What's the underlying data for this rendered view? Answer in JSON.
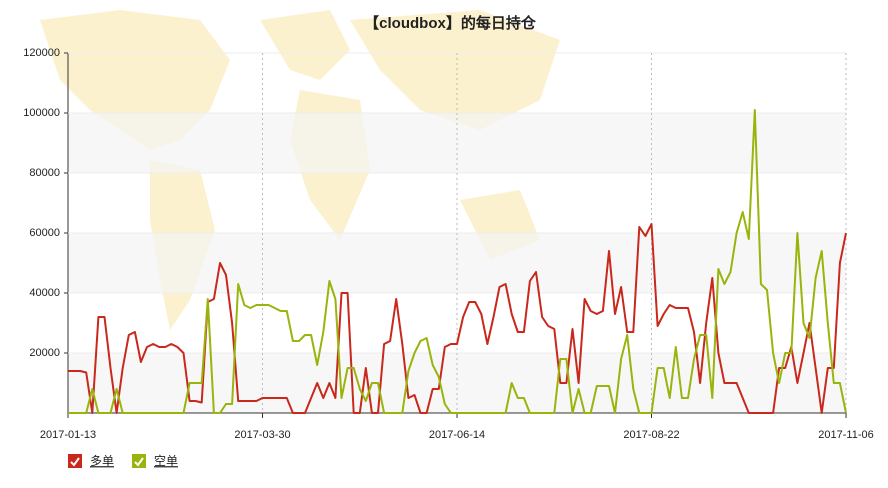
{
  "chart_data": {
    "type": "line",
    "title": "【cloudbox】的每日持仓",
    "categories": [
      "2017-01-13",
      null,
      null,
      null,
      null,
      null,
      null,
      null,
      null,
      null,
      null,
      null,
      null,
      null,
      null,
      null,
      null,
      null,
      null,
      null,
      null,
      null,
      null,
      null,
      null,
      null,
      null,
      null,
      null,
      null,
      null,
      null,
      "2017-03-30",
      null,
      null,
      null,
      null,
      null,
      null,
      null,
      null,
      null,
      null,
      null,
      null,
      null,
      null,
      null,
      null,
      null,
      null,
      null,
      null,
      null,
      null,
      null,
      null,
      null,
      null,
      null,
      null,
      null,
      null,
      null,
      "2017-06-14",
      null,
      null,
      null,
      null,
      null,
      null,
      null,
      null,
      null,
      null,
      null,
      null,
      null,
      null,
      null,
      null,
      null,
      null,
      null,
      null,
      null,
      null,
      null,
      null,
      null,
      null,
      null,
      null,
      null,
      null,
      null,
      "2017-08-22",
      null,
      null,
      null,
      null,
      null,
      null,
      null,
      null,
      null,
      null,
      null,
      null,
      null,
      null,
      null,
      null,
      null,
      null,
      null,
      null,
      null,
      null,
      null,
      null,
      null,
      null,
      null,
      null,
      null,
      null,
      null,
      "2017-11-06"
    ],
    "series": [
      {
        "name": "多单",
        "color": "#c9281c",
        "values": [
          14000,
          14000,
          14000,
          13500,
          0,
          32000,
          32000,
          15000,
          0,
          15000,
          26000,
          27000,
          17000,
          22000,
          23000,
          22000,
          22000,
          23000,
          22000,
          20000,
          4000,
          4000,
          3500,
          37000,
          38000,
          50000,
          46000,
          30000,
          4000,
          4000,
          4000,
          4000,
          5000,
          5000,
          5000,
          5000,
          5000,
          0,
          0,
          0,
          5000,
          10000,
          5000,
          10000,
          5000,
          40000,
          40000,
          0,
          0,
          15000,
          0,
          0,
          23000,
          24000,
          38000,
          23000,
          5000,
          6000,
          0,
          0,
          8000,
          8000,
          22000,
          23000,
          23000,
          32000,
          37000,
          37000,
          33000,
          23000,
          32000,
          42000,
          43000,
          33000,
          27000,
          27000,
          44000,
          47000,
          32000,
          29000,
          28000,
          10000,
          10000,
          28000,
          10000,
          38000,
          34000,
          33000,
          34000,
          54000,
          33000,
          42000,
          27000,
          27000,
          62000,
          59000,
          63000,
          29000,
          33000,
          36000,
          35000,
          35000,
          35000,
          27000,
          10000,
          30000,
          45000,
          20000,
          10000,
          10000,
          10000,
          5000,
          0,
          0,
          0,
          0,
          0,
          15000,
          15000,
          22000,
          10000,
          20000,
          30000,
          15000,
          0,
          15000,
          15000,
          50000,
          60000
        ]
      },
      {
        "name": "空单",
        "color": "#99b40c",
        "values": [
          0,
          0,
          0,
          0,
          8000,
          0,
          0,
          0,
          8000,
          0,
          0,
          0,
          0,
          0,
          0,
          0,
          0,
          0,
          0,
          0,
          10000,
          10000,
          10000,
          38000,
          0,
          0,
          3000,
          3000,
          43000,
          36000,
          35000,
          36000,
          36000,
          36000,
          35000,
          34000,
          34000,
          24000,
          24000,
          26000,
          26000,
          16000,
          27000,
          44000,
          38000,
          5000,
          15000,
          15000,
          8000,
          4000,
          10000,
          10000,
          0,
          0,
          0,
          0,
          14000,
          20000,
          24000,
          25000,
          16000,
          12000,
          3000,
          0,
          0,
          0,
          0,
          0,
          0,
          0,
          0,
          0,
          0,
          10000,
          5000,
          5000,
          0,
          0,
          0,
          0,
          0,
          18000,
          18000,
          0,
          8000,
          0,
          0,
          9000,
          9000,
          9000,
          0,
          18000,
          26000,
          8000,
          0,
          0,
          0,
          15000,
          15000,
          5000,
          22000,
          5000,
          5000,
          18000,
          26000,
          26000,
          5000,
          48000,
          43000,
          47000,
          60000,
          67000,
          58000,
          101000,
          43000,
          41000,
          20000,
          10000,
          20000,
          20000,
          60000,
          30000,
          25000,
          45000,
          54000,
          30000,
          10000,
          10000,
          0
        ]
      }
    ],
    "ylim": [
      0,
      120000
    ],
    "yticks": [
      20000,
      40000,
      60000,
      80000,
      100000,
      120000
    ],
    "grid": true
  }
}
